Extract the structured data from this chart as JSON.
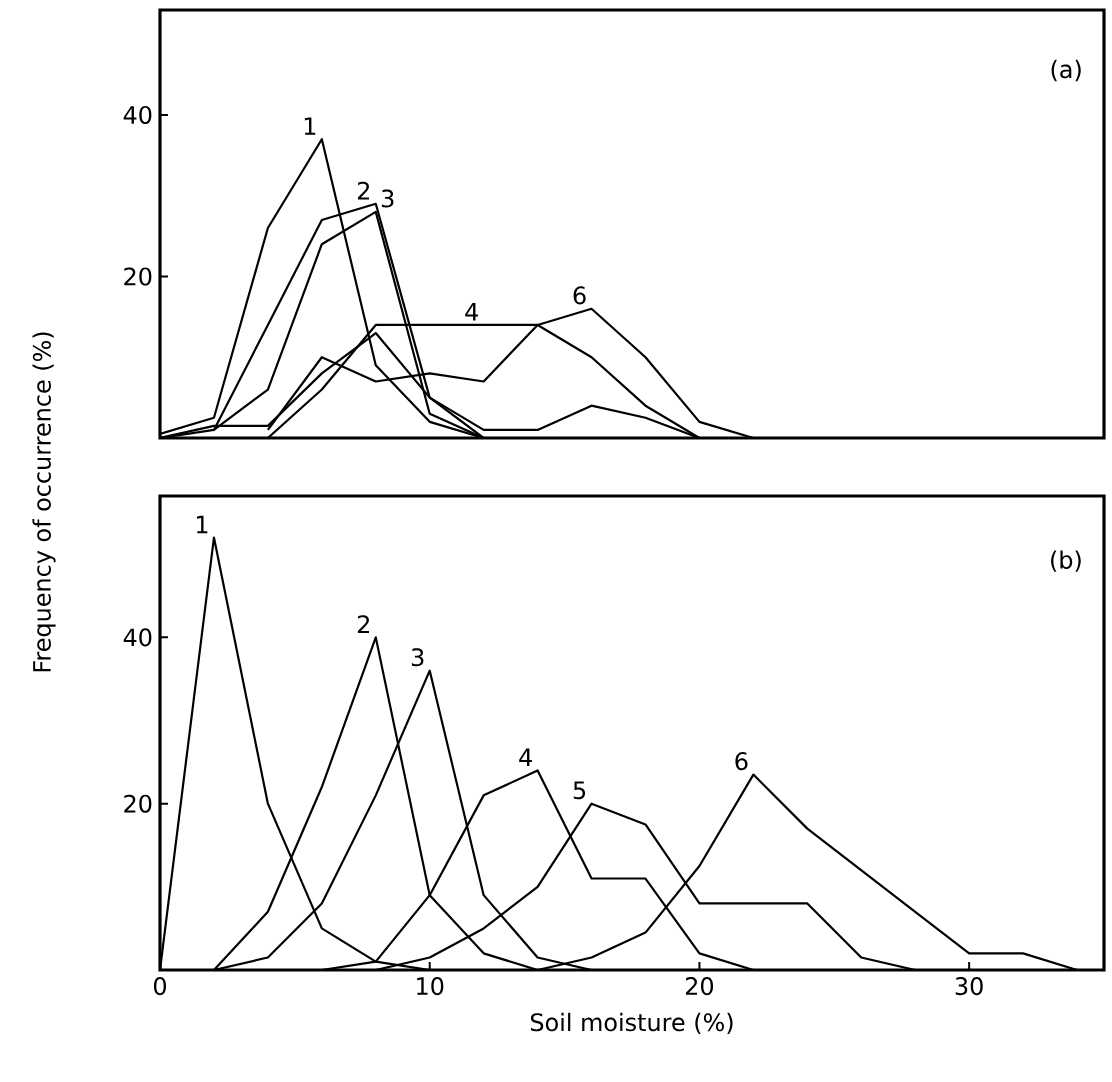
{
  "chart_data": [
    {
      "type": "line",
      "title": "(a)",
      "ylabel": "Frequency of occurrence (%)",
      "xlim": [
        0,
        35
      ],
      "ylim": [
        0,
        53
      ],
      "yticks": [
        20,
        40
      ],
      "tick_labels": "y",
      "marker": "none",
      "line_style": "solid",
      "grid": false,
      "series": [
        {
          "name": "1",
          "color": "#000000",
          "x": [
            0,
            2,
            4,
            6,
            8,
            10,
            12
          ],
          "values": [
            0.5,
            2.5,
            26,
            37,
            9,
            2,
            0
          ]
        },
        {
          "name": "2",
          "color": "#000000",
          "x": [
            0,
            2,
            4,
            6,
            8,
            10,
            12
          ],
          "values": [
            0,
            1,
            14,
            27,
            29,
            5,
            0
          ]
        },
        {
          "name": "3",
          "color": "#000000",
          "x": [
            2,
            4,
            6,
            8,
            10,
            12
          ],
          "values": [
            1,
            6,
            24,
            28,
            3,
            0
          ]
        },
        {
          "name": "4",
          "color": "#000000",
          "x": [
            4,
            6,
            8,
            10,
            12,
            14,
            16,
            18,
            20
          ],
          "values": [
            0,
            6,
            14,
            14,
            14,
            14,
            10,
            4,
            0
          ]
        },
        {
          "color": "#000000",
          "x": [
            0,
            2,
            4,
            6,
            8,
            10,
            12,
            14,
            16,
            18,
            20
          ],
          "values": [
            0,
            1.5,
            1.5,
            8,
            13,
            5,
            1,
            1,
            4,
            2.5,
            0
          ]
        },
        {
          "name": "6",
          "color": "#000000",
          "x": [
            4,
            6,
            8,
            10,
            12,
            14,
            16,
            18,
            20,
            22
          ],
          "values": [
            1,
            10,
            7,
            8,
            7,
            14,
            16,
            10,
            2,
            0
          ]
        }
      ]
    },
    {
      "type": "line",
      "title": "(b)",
      "xlabel": "Soil moisture (%)",
      "xlim": [
        0,
        35
      ],
      "ylim": [
        0,
        57
      ],
      "xticks": [
        0,
        10,
        20,
        30
      ],
      "yticks": [
        20,
        40
      ],
      "marker": "none",
      "line_style": "solid",
      "grid": false,
      "series": [
        {
          "name": "1",
          "color": "#000000",
          "x": [
            0,
            2,
            4,
            6,
            8,
            10
          ],
          "values": [
            0,
            52,
            20,
            5,
            1,
            0
          ]
        },
        {
          "name": "2",
          "color": "#000000",
          "x": [
            2,
            4,
            6,
            8,
            10,
            12,
            14
          ],
          "values": [
            0,
            7,
            22,
            40,
            9,
            2,
            0
          ]
        },
        {
          "name": "3",
          "color": "#000000",
          "x": [
            2,
            4,
            6,
            8,
            10,
            12,
            14,
            16
          ],
          "values": [
            0,
            1.5,
            8,
            21,
            36,
            9,
            1.5,
            0
          ]
        },
        {
          "name": "4",
          "color": "#000000",
          "x": [
            6,
            8,
            10,
            12,
            14,
            16,
            18,
            20,
            22
          ],
          "values": [
            0,
            1,
            9,
            21,
            24,
            11,
            11,
            2,
            0
          ]
        },
        {
          "name": "5",
          "color": "#000000",
          "x": [
            8,
            10,
            12,
            14,
            16,
            18,
            20,
            22,
            24,
            26,
            28
          ],
          "values": [
            0,
            1.5,
            5,
            10,
            20,
            17.5,
            8,
            8,
            8,
            1.5,
            0
          ]
        },
        {
          "name": "6",
          "color": "#000000",
          "x": [
            14,
            16,
            18,
            20,
            22,
            24,
            26,
            28,
            30,
            32,
            34
          ],
          "values": [
            0,
            1.5,
            4.5,
            12.5,
            23.5,
            17,
            12,
            7,
            2,
            2,
            0
          ]
        }
      ]
    }
  ]
}
